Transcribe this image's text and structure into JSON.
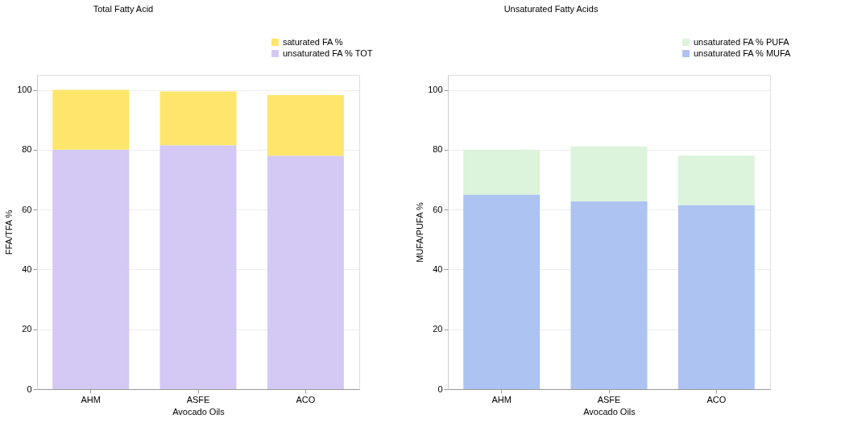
{
  "chart_data": [
    {
      "type": "bar",
      "title": "Total Fatty Acid",
      "xlabel": "Avocado Oils",
      "ylabel": "FFA/TFA %",
      "categories": [
        "AHM",
        "ASFE",
        "ACO"
      ],
      "stacked": true,
      "series": [
        {
          "name": "unsaturated FA % TOT",
          "color": "#d4c8f5",
          "values": [
            80,
            81.5,
            78
          ]
        },
        {
          "name": "saturated FA %",
          "color": "#fde66b",
          "values": [
            20,
            18,
            20.3
          ]
        }
      ],
      "ylim": [
        0,
        105
      ],
      "yticks": [
        0,
        20,
        40,
        60,
        80,
        100
      ],
      "grid": "y",
      "legend": "top right"
    },
    {
      "type": "bar",
      "title": "Unsaturated Fatty Acids",
      "xlabel": "Avocado Oils",
      "ylabel": "MUFA/PUFA %",
      "categories": [
        "AHM",
        "ASFE",
        "ACO"
      ],
      "stacked": true,
      "series": [
        {
          "name": "unsaturated FA % MUFA",
          "color": "#adc3f2",
          "values": [
            65,
            62.7,
            61.5
          ]
        },
        {
          "name": "unsaturated FA % PUFA",
          "color": "#dcf3dc",
          "values": [
            15,
            18.4,
            16.5
          ]
        }
      ],
      "ylim": [
        0,
        105
      ],
      "yticks": [
        0,
        20,
        40,
        60,
        80,
        100
      ],
      "grid": "y",
      "legend": "top right"
    }
  ]
}
